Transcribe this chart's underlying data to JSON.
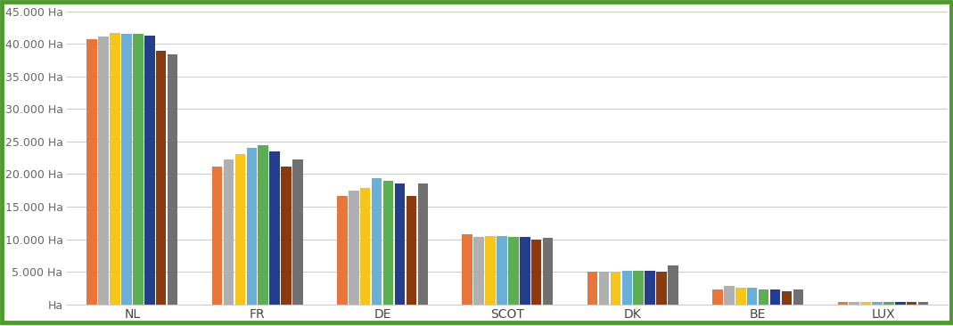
{
  "categories": [
    "NL",
    "FR",
    "DE",
    "SCOT",
    "DK",
    "BE",
    "LUX"
  ],
  "series_colors": [
    "#E8763A",
    "#B0B0B0",
    "#F5C518",
    "#6AAFD6",
    "#5DAD54",
    "#243D8C",
    "#8B3A10",
    "#707070"
  ],
  "series_data": [
    [
      40800,
      21100,
      16700,
      10800,
      4950,
      2250,
      350
    ],
    [
      41200,
      22200,
      17500,
      10400,
      4950,
      2750,
      380
    ],
    [
      41700,
      23100,
      17900,
      10450,
      4950,
      2500,
      420
    ],
    [
      41500,
      24000,
      19400,
      10500,
      5200,
      2500,
      420
    ],
    [
      41500,
      24500,
      19000,
      10400,
      5100,
      2250,
      420
    ],
    [
      41300,
      23500,
      18500,
      10350,
      5100,
      2250,
      420
    ],
    [
      38900,
      21100,
      16700,
      10000,
      5000,
      2050,
      400
    ],
    [
      38400,
      22300,
      18600,
      10200,
      5900,
      2250,
      400
    ]
  ],
  "ylim": [
    0,
    46000
  ],
  "yticks": [
    0,
    5000,
    10000,
    15000,
    20000,
    25000,
    30000,
    35000,
    40000,
    45000
  ],
  "ytick_labels": [
    "Ha",
    "5.000 Ha",
    "10.000 Ha",
    "15.000 Ha",
    "20.000 Ha",
    "25.000 Ha",
    "30.000 Ha",
    "35.000 Ha",
    "40.000 Ha",
    "45.000 Ha"
  ],
  "bg_color": "#FFFFFF",
  "border_color": "#4E9A30",
  "grid_color": "#CCCCCC",
  "figsize": [
    10.69,
    3.66
  ],
  "dpi": 100
}
